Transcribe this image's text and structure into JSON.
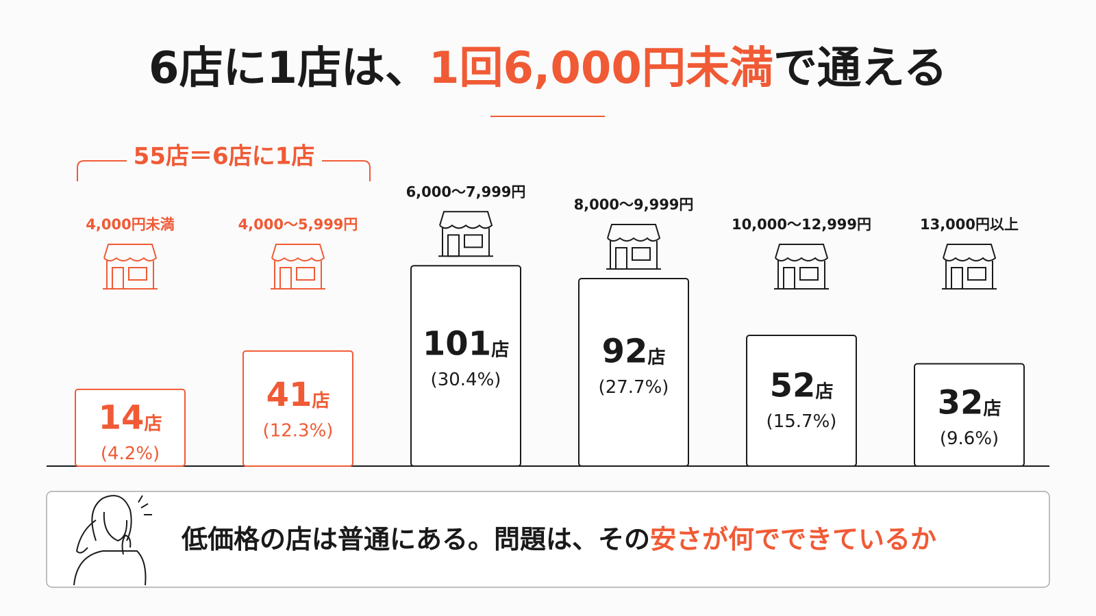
{
  "header": {
    "title": [
      {
        "text": "6店に1店は、",
        "color": "#1a1a1a"
      },
      {
        "text": "1回6,000円未満",
        "color": "#f05a35"
      },
      {
        "text": "で通える",
        "color": "#1a1a1a"
      }
    ]
  },
  "chart_data": {
    "type": "bar",
    "bracket_label": "55店＝6店に1店",
    "categories": [
      "4,000円未満",
      "4,000〜5,999円",
      "6,000〜7,999円",
      "8,000〜9,999円",
      "10,000〜12,999円",
      "13,000円以上"
    ],
    "values": [
      14,
      41,
      101,
      92,
      52,
      32
    ],
    "value_labels": [
      "14店",
      "41店",
      "101店",
      "92店",
      "52店",
      "32店"
    ],
    "percents": [
      4.2,
      12.3,
      30.4,
      27.7,
      15.7,
      9.6
    ],
    "percent_labels": [
      "(4.2%)",
      "(12.3%)",
      "(30.4%)",
      "(27.7%)",
      "(15.7%)",
      "(9.6%)"
    ],
    "colors": [
      "#f05a35",
      "#f05a35",
      "#1a1a1a",
      "#1a1a1a",
      "#1a1a1a",
      "#1a1a1a"
    ],
    "ylim": [
      -40,
      105
    ]
  },
  "footer": {
    "caption": [
      {
        "text": "低価格の店は普通にある。問題は、その",
        "color": "#1a1a1a"
      },
      {
        "text": "安さが何でできているか",
        "color": "#f05a35"
      }
    ]
  }
}
